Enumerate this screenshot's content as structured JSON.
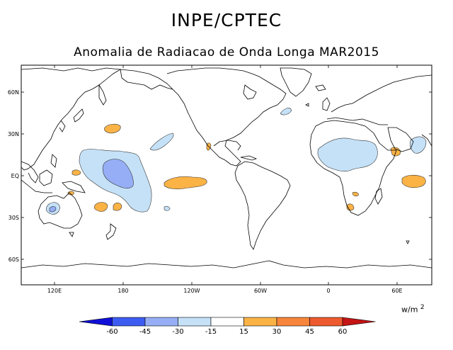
{
  "header": {
    "title": "INPE/CPTEC",
    "subtitle": "Anomalia de Radiacao de Onda Longa MAR2015"
  },
  "map": {
    "projection": "cylindrical equidistant, Pacific-centered",
    "lat_labels": [
      "60N",
      "30N",
      "EQ",
      "30S",
      "60S"
    ],
    "lon_labels": [
      "120E",
      "180",
      "120W",
      "60W",
      "0",
      "60E"
    ],
    "colors": {
      "coast": "#000000",
      "neg_light": "#c5e1f7",
      "neg_mid": "#96aef5",
      "pos_light": "#fbb346"
    }
  },
  "colorbar": {
    "units_base": "w/m",
    "units_exp": "2",
    "ticks": [
      "-60",
      "-45",
      "-30",
      "-15",
      "15",
      "30",
      "45",
      "60"
    ],
    "colors": [
      "#1010d8",
      "#3d5cf2",
      "#96aef5",
      "#c5e1f7",
      "#ffffff",
      "#fbb346",
      "#f7853b",
      "#ee5a2f",
      "#c41414"
    ]
  }
}
